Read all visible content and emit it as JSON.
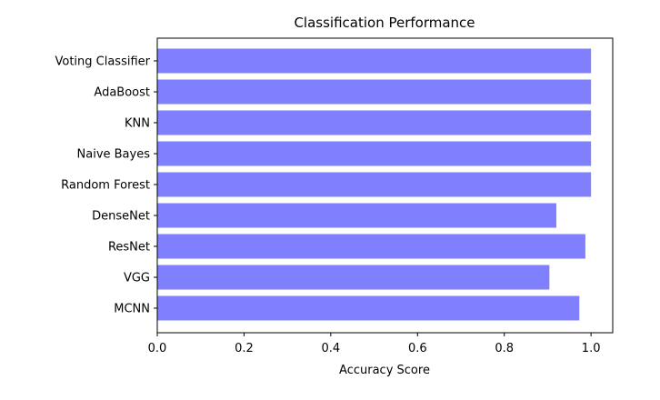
{
  "chart_data": {
    "type": "bar",
    "orientation": "horizontal",
    "title": "Classification Performance",
    "xlabel": "Accuracy Score",
    "ylabel": "",
    "xlim": [
      0,
      1.05
    ],
    "xticks": [
      0.0,
      0.2,
      0.4,
      0.6,
      0.8,
      1.0
    ],
    "xtick_labels": [
      "0.0",
      "0.2",
      "0.4",
      "0.6",
      "0.8",
      "1.0"
    ],
    "categories": [
      "Voting Classifier",
      "AdaBoost",
      "KNN",
      "Naive Bayes",
      "Random Forest",
      "DenseNet",
      "ResNet",
      "VGG",
      "MCNN"
    ],
    "values": [
      1.0,
      1.0,
      1.0,
      1.0,
      1.0,
      0.92,
      0.987,
      0.904,
      0.973
    ],
    "bar_color": "#8080ff",
    "grid": false,
    "legend": "none"
  }
}
